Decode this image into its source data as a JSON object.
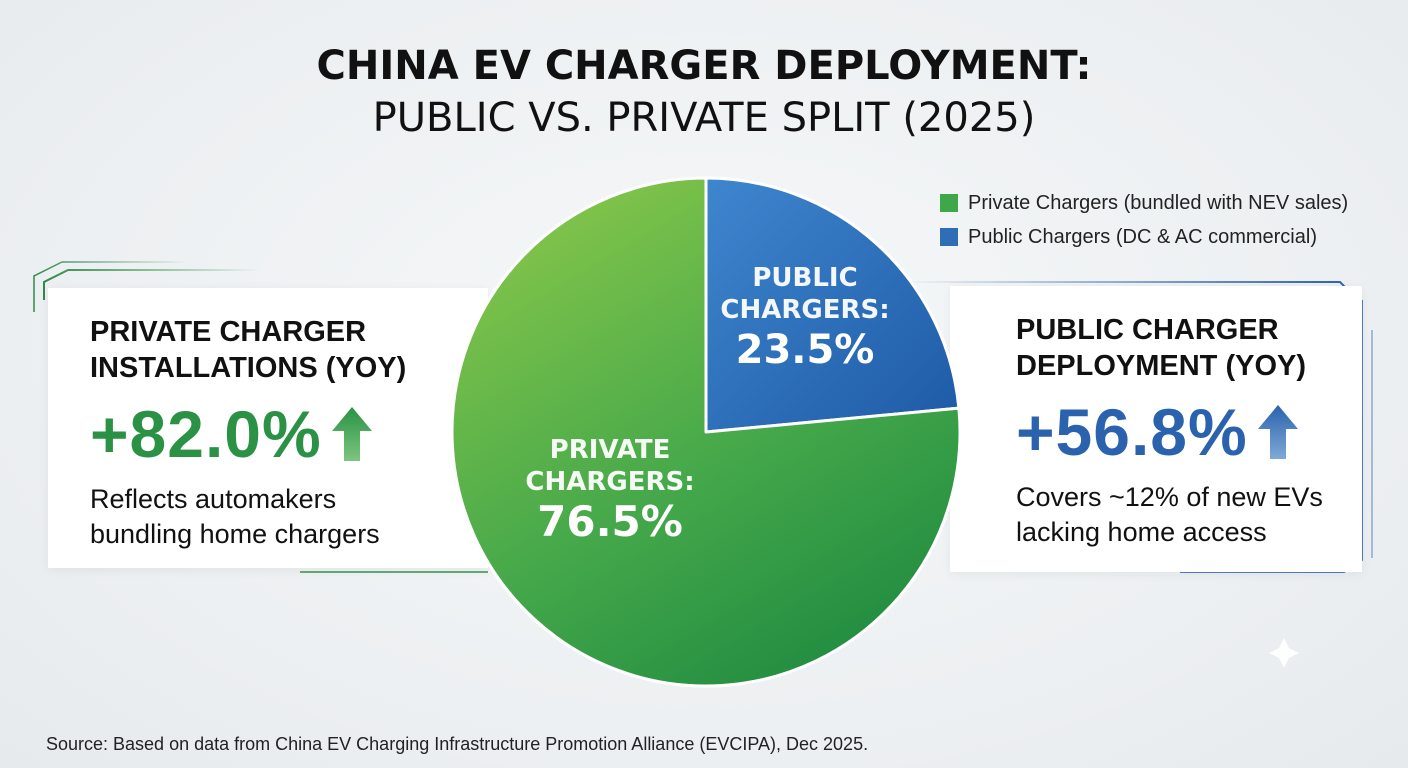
{
  "title_line1": "CHINA EV CHARGER DEPLOYMENT:",
  "title_line2": "PUBLIC VS. PRIVATE SPLIT (2025)",
  "legend": [
    {
      "label": "Private Chargers (bundled with NEV sales)",
      "color": "#3fa64a"
    },
    {
      "label": "Public Chargers (DC & AC commercial)",
      "color": "#2f6eb5"
    }
  ],
  "left_card": {
    "title_line1": "PRIVATE CHARGER",
    "title_line2": "INSTALLATIONS (YOY)",
    "value": "+82.0%",
    "desc_line1": "Reflects automakers",
    "desc_line2": "bundling home chargers",
    "color": "#2a9145",
    "arrow_icon": "arrow-up-icon"
  },
  "right_card": {
    "title_line1": "PUBLIC CHARGER",
    "title_line2": "DEPLOYMENT (YOY)",
    "value": "+56.8%",
    "desc_line1": "Covers ~12% of new EVs",
    "desc_line2": "lacking home access",
    "color": "#2a62ad",
    "arrow_icon": "arrow-up-icon"
  },
  "chart_data": {
    "type": "pie",
    "slices": [
      {
        "name": "PRIVATE CHARGERS:",
        "value": 76.5,
        "display": "76.5%",
        "color": "#3fa64a"
      },
      {
        "name": "PUBLIC CHARGERS:",
        "value": 23.5,
        "display": "23.5%",
        "color": "#2f6eb5"
      }
    ],
    "legend_position": "top-right"
  },
  "source": "Source: Based on data from China EV Charging Infrastructure Promotion Alliance (EVCIPA), Dec 2025."
}
